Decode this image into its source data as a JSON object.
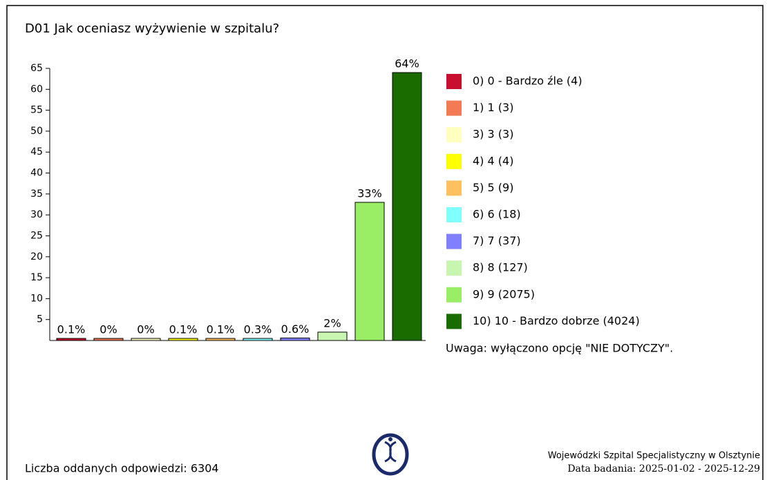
{
  "chart_data": {
    "type": "bar",
    "title": "D01 Jak oceniasz wyżywienie w szpitalu?",
    "categories": [
      "0) 0 - Bardzo źle (4)",
      "1) 1 (3)",
      "3) 3 (3)",
      "4) 4 (4)",
      "5) 5 (9)",
      "6) 6 (18)",
      "7) 7 (37)",
      "8) 8 (127)",
      "9) 9 (2075)",
      "10) 10 - Bardzo dobrze (4024)"
    ],
    "values": [
      0.1,
      0,
      0,
      0.1,
      0.1,
      0.3,
      0.6,
      2,
      33,
      64
    ],
    "value_labels": [
      "0.1%",
      "0%",
      "0%",
      "0.1%",
      "0.1%",
      "0.3%",
      "0.6%",
      "2%",
      "33%",
      "64%"
    ],
    "colors": [
      "#c8102e",
      "#f47a55",
      "#ffffc0",
      "#ffff00",
      "#ffc060",
      "#80ffff",
      "#8080ff",
      "#c8f5b0",
      "#99ee66",
      "#1a6b00"
    ],
    "ylim": [
      0,
      65
    ],
    "yticks": [
      5,
      10,
      15,
      20,
      25,
      30,
      35,
      40,
      45,
      50,
      55,
      60,
      65
    ],
    "note": "Uwaga: wyłączono opcję \"NIE DOTYCZY\"."
  },
  "footer": {
    "responses": "Liczba oddanych odpowiedzi: 6304",
    "hospital": "Wojewódzki Szpital Specjalistyczny w Olsztynie",
    "date": "Data badania: 2025-01-02 - 2025-12-29"
  }
}
